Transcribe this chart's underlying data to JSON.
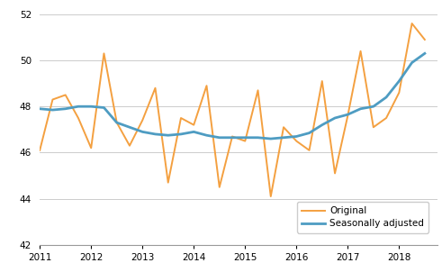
{
  "title": "",
  "xlabel": "",
  "ylabel": "",
  "xlim": [
    2011.0,
    2018.75
  ],
  "ylim": [
    42,
    52.5
  ],
  "yticks": [
    42,
    44,
    46,
    48,
    50,
    52
  ],
  "xticks": [
    2011,
    2012,
    2013,
    2014,
    2015,
    2016,
    2017,
    2018
  ],
  "original_color": "#f4a040",
  "seasonal_color": "#4e9cc2",
  "original_lw": 1.4,
  "seasonal_lw": 2.0,
  "quarters": [
    2011.0,
    2011.25,
    2011.5,
    2011.75,
    2012.0,
    2012.25,
    2012.5,
    2012.75,
    2013.0,
    2013.25,
    2013.5,
    2013.75,
    2014.0,
    2014.25,
    2014.5,
    2014.75,
    2015.0,
    2015.25,
    2015.5,
    2015.75,
    2016.0,
    2016.25,
    2016.5,
    2016.75,
    2017.0,
    2017.25,
    2017.5,
    2017.75,
    2018.0,
    2018.25,
    2018.5
  ],
  "original": [
    46.1,
    48.3,
    48.5,
    47.5,
    46.2,
    50.3,
    47.3,
    46.3,
    47.4,
    48.8,
    44.7,
    47.5,
    47.2,
    48.9,
    44.5,
    46.7,
    46.5,
    48.7,
    44.1,
    47.1,
    46.5,
    46.1,
    49.1,
    45.1,
    47.6,
    50.4,
    47.1,
    47.5,
    48.6,
    51.6,
    50.9
  ],
  "seasonal": [
    47.9,
    47.85,
    47.9,
    48.0,
    48.0,
    47.95,
    47.3,
    47.1,
    46.9,
    46.8,
    46.75,
    46.8,
    46.9,
    46.75,
    46.65,
    46.65,
    46.65,
    46.65,
    46.6,
    46.65,
    46.7,
    46.85,
    47.2,
    47.5,
    47.65,
    47.9,
    48.0,
    48.4,
    49.1,
    49.9,
    50.3
  ],
  "legend_original": "Original",
  "legend_seasonal": "Seasonally adjusted",
  "background_color": "#ffffff",
  "grid_color": "#cccccc",
  "grid_lw": 0.7,
  "tick_labelsize": 7.5,
  "legend_fontsize": 7.5
}
